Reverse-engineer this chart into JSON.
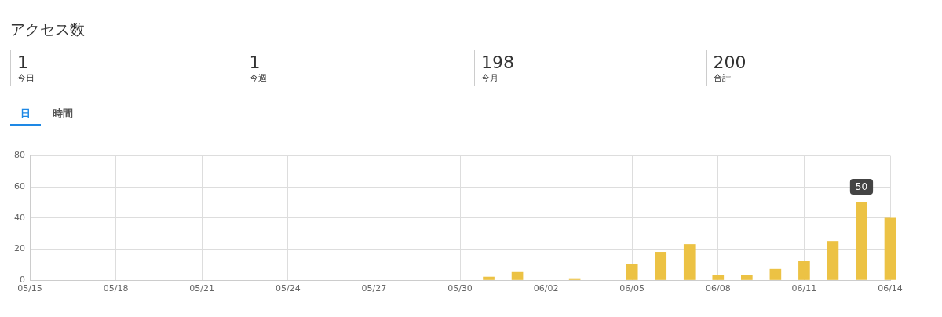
{
  "chart_data": {
    "type": "bar",
    "title": "アクセス数",
    "annotations": [
      "1",
      "今日",
      "1",
      "今週",
      "198",
      "今月",
      "200",
      "合計",
      "日",
      "時間",
      {
        "text": "50",
        "x": "--06-13",
        "y": 50
      }
    ],
    "x": [
      "--05-31",
      "--06-01",
      "--06-03",
      "--06-05",
      "--06-06",
      "--06-07",
      "--06-08",
      "--06-09",
      "--06-10",
      "--06-11",
      "--06-12",
      "--06-13",
      "--06-14"
    ],
    "values": [
      2,
      5,
      1,
      10,
      18,
      23,
      3,
      3,
      7,
      12,
      25,
      50,
      40
    ],
    "color": "#ecc244",
    "xlim": [
      "--05-15",
      "--06-14"
    ],
    "xticks": [
      {
        "value": "--05-15",
        "label": "05/15"
      },
      {
        "value": "--05-18",
        "label": "05/18"
      },
      {
        "value": "--05-21",
        "label": "05/21"
      },
      {
        "value": "--05-24",
        "label": "05/24"
      },
      {
        "value": "--05-27",
        "label": "05/27"
      },
      {
        "value": "--05-30",
        "label": "05/30"
      },
      {
        "value": "--06-02",
        "label": "06/02"
      },
      {
        "value": "--06-05",
        "label": "06/05"
      },
      {
        "value": "--06-08",
        "label": "06/08"
      },
      {
        "value": "--06-11",
        "label": "06/11"
      },
      {
        "value": "--06-14",
        "label": "06/14"
      }
    ],
    "ylim": [
      0,
      80
    ],
    "yticks": [
      0,
      20,
      40,
      60,
      80
    ],
    "grid": true
  }
}
